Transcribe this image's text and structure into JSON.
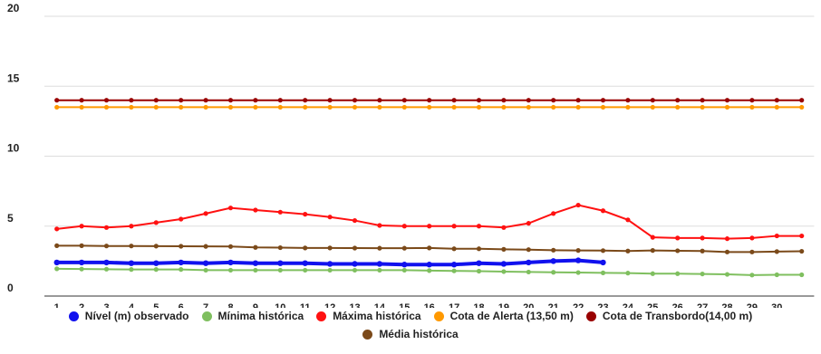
{
  "chart_data": {
    "type": "line",
    "categories": [
      "1",
      "2",
      "3",
      "4",
      "5",
      "6",
      "7",
      "8",
      "9",
      "10",
      "11",
      "12",
      "13",
      "14",
      "15",
      "16",
      "17",
      "18",
      "19",
      "20",
      "21",
      "22",
      "23",
      "24",
      "25",
      "26",
      "27",
      "28",
      "29",
      "30",
      null
    ],
    "ylim": [
      0,
      20
    ],
    "yticks": [
      0,
      5,
      10,
      15,
      20
    ],
    "grid": true,
    "series": [
      {
        "name": "Nível (m) observado",
        "color": "#1111ee",
        "values": [
          2.4,
          2.4,
          2.4,
          2.35,
          2.35,
          2.4,
          2.35,
          2.4,
          2.35,
          2.35,
          2.35,
          2.3,
          2.3,
          2.3,
          2.25,
          2.25,
          2.25,
          2.35,
          2.3,
          2.4,
          2.5,
          2.55,
          2.4,
          null,
          null,
          null,
          null,
          null,
          null,
          null,
          null
        ]
      },
      {
        "name": "Mínima histórica",
        "color": "#7fbf5f",
        "values": [
          1.95,
          1.93,
          1.92,
          1.9,
          1.9,
          1.9,
          1.85,
          1.85,
          1.85,
          1.85,
          1.85,
          1.85,
          1.85,
          1.85,
          1.85,
          1.82,
          1.8,
          1.78,
          1.75,
          1.72,
          1.7,
          1.68,
          1.66,
          1.64,
          1.6,
          1.6,
          1.58,
          1.55,
          1.5,
          1.52,
          1.52
        ]
      },
      {
        "name": "Máxima histórica",
        "color": "#ff1111",
        "values": [
          4.8,
          5.0,
          4.9,
          5.0,
          5.25,
          5.5,
          5.9,
          6.3,
          6.15,
          6.0,
          5.85,
          5.65,
          5.4,
          5.05,
          5.0,
          5.0,
          5.0,
          5.0,
          4.9,
          5.2,
          5.9,
          6.5,
          6.1,
          5.45,
          4.2,
          4.15,
          4.15,
          4.1,
          4.15,
          4.3,
          4.3
        ]
      },
      {
        "name": "Cota de Alerta (13,50 m)",
        "color": "#ff9900",
        "values": [
          13.5,
          13.5,
          13.5,
          13.5,
          13.5,
          13.5,
          13.5,
          13.5,
          13.5,
          13.5,
          13.5,
          13.5,
          13.5,
          13.5,
          13.5,
          13.5,
          13.5,
          13.5,
          13.5,
          13.5,
          13.5,
          13.5,
          13.5,
          13.5,
          13.5,
          13.5,
          13.5,
          13.5,
          13.5,
          13.5,
          13.5
        ]
      },
      {
        "name": "Cota de Transbordo(14,00 m)",
        "color": "#990000",
        "values": [
          14,
          14,
          14,
          14,
          14,
          14,
          14,
          14,
          14,
          14,
          14,
          14,
          14,
          14,
          14,
          14,
          14,
          14,
          14,
          14,
          14,
          14,
          14,
          14,
          14,
          14,
          14,
          14,
          14,
          14,
          14
        ]
      },
      {
        "name": "Média histórica",
        "color": "#7b4a1a",
        "values": [
          3.6,
          3.6,
          3.58,
          3.58,
          3.57,
          3.56,
          3.55,
          3.54,
          3.48,
          3.46,
          3.44,
          3.44,
          3.43,
          3.42,
          3.42,
          3.44,
          3.38,
          3.38,
          3.34,
          3.32,
          3.28,
          3.26,
          3.25,
          3.22,
          3.26,
          3.24,
          3.22,
          3.15,
          3.15,
          3.18,
          3.2
        ]
      }
    ]
  }
}
